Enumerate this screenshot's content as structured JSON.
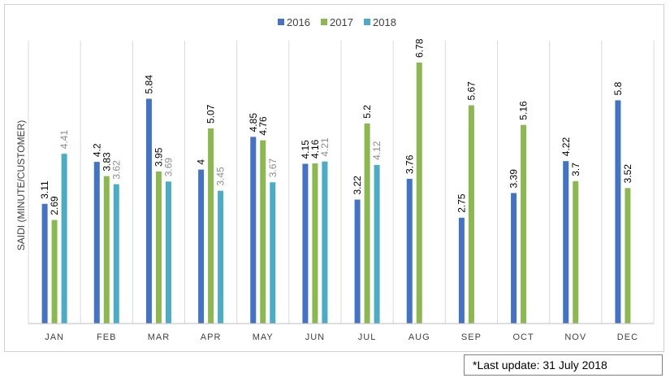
{
  "chart_data": {
    "type": "bar",
    "ylabel": "SAIDI (MINUTE/CUSTOMER)",
    "xlabel": "",
    "categories": [
      "JAN",
      "FEB",
      "MAR",
      "APR",
      "MAY",
      "JUN",
      "JUL",
      "AUG",
      "SEP",
      "OCT",
      "NOV",
      "DEC"
    ],
    "series": [
      {
        "name": "2016",
        "color": "#4472c4",
        "values": [
          3.11,
          4.2,
          5.84,
          4,
          4.85,
          4.15,
          3.22,
          3.76,
          2.75,
          3.39,
          4.22,
          5.8
        ],
        "labels": [
          "3.11",
          "4.2",
          "5.84",
          "4",
          "4.85",
          "4.15",
          "3.22",
          "3.76",
          "2.75",
          "3.39",
          "4.22",
          "5.8"
        ]
      },
      {
        "name": "2017",
        "color": "#8cb850",
        "values": [
          2.69,
          3.83,
          3.95,
          5.07,
          4.76,
          4.16,
          5.2,
          6.78,
          5.67,
          5.16,
          3.7,
          3.52
        ],
        "labels": [
          "2.69",
          "3.83",
          "3.95",
          "5.07",
          "4.76",
          "4.16",
          "5.2",
          "6.78",
          "5.67",
          "5.16",
          "3.7",
          "3.52"
        ]
      },
      {
        "name": "2018",
        "color": "#4bacc6",
        "values": [
          4.41,
          3.62,
          3.69,
          3.45,
          3.67,
          4.21,
          4.12,
          null,
          null,
          null,
          null,
          null
        ],
        "labels": [
          "4.41",
          "3.62",
          "3.69",
          "3.45",
          "3.67",
          "4.21",
          "4.12",
          null,
          null,
          null,
          null,
          null
        ]
      }
    ],
    "ylim": [
      0,
      7.35
    ],
    "grid": "vertical",
    "legend": "top-center"
  },
  "footnote": "*Last update: 31 July 2018"
}
